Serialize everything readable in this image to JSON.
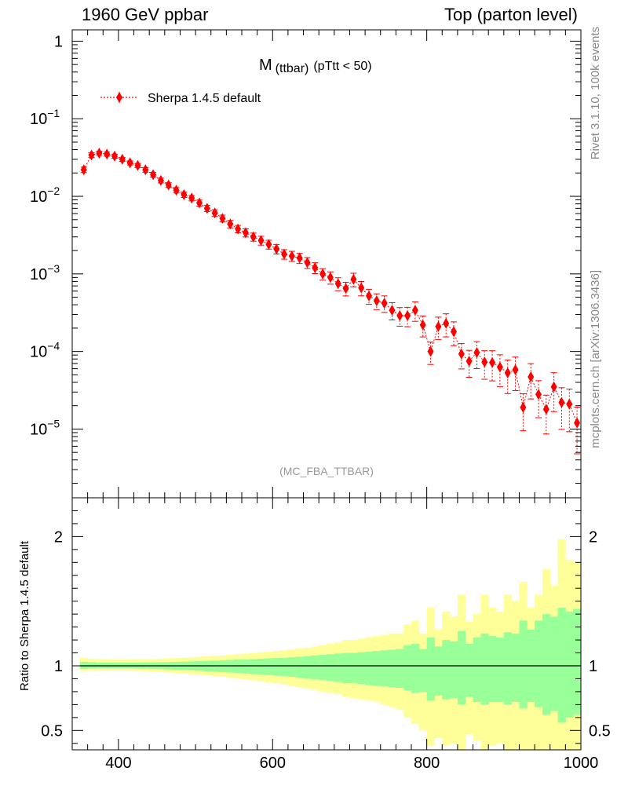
{
  "header": {
    "left": "1960 GeV ppbar",
    "right": "Top (parton level)"
  },
  "side_text": {
    "upper": "Rivet 3.1.10,  100k events",
    "lower": "mcplots.cern.ch [arXiv:1306.3436]"
  },
  "chart_data": [
    {
      "type": "scatter",
      "panel": "main",
      "title_main": "M",
      "title_sub": "(ttbar)",
      "title_tail": "(pTtt < 50)",
      "watermark": "(MC_FBA_TTBAR)",
      "yscale": "log",
      "ylim": [
        1.3e-06,
        1.4
      ],
      "xlim": [
        340,
        1000
      ],
      "y_ticks": [
        {
          "value": 1,
          "mantissa": "1",
          "exp": ""
        },
        {
          "value": 0.1,
          "mantissa": "10",
          "exp": "−1"
        },
        {
          "value": 0.01,
          "mantissa": "10",
          "exp": "−2"
        },
        {
          "value": 0.001,
          "mantissa": "10",
          "exp": "−3"
        },
        {
          "value": 0.0001,
          "mantissa": "10",
          "exp": "−4"
        },
        {
          "value": 1e-05,
          "mantissa": "10",
          "exp": "−5"
        }
      ],
      "legend_position": "top-left",
      "series": [
        {
          "name": "Sherpa 1.4.5 default",
          "color": "#ff0000",
          "marker": "diamond",
          "line": "dotted",
          "x": [
            355,
            365,
            375,
            385,
            395,
            405,
            415,
            425,
            435,
            445,
            455,
            465,
            475,
            485,
            495,
            505,
            515,
            525,
            535,
            545,
            555,
            565,
            575,
            585,
            595,
            605,
            615,
            625,
            635,
            645,
            655,
            665,
            675,
            685,
            695,
            705,
            715,
            725,
            735,
            745,
            755,
            765,
            775,
            785,
            795,
            805,
            815,
            825,
            835,
            845,
            855,
            865,
            875,
            885,
            895,
            905,
            915,
            925,
            935,
            945,
            955,
            965,
            975,
            985,
            995
          ],
          "y": [
            0.022,
            0.034,
            0.036,
            0.035,
            0.033,
            0.03,
            0.027,
            0.025,
            0.022,
            0.019,
            0.016,
            0.014,
            0.012,
            0.0105,
            0.0095,
            0.0082,
            0.007,
            0.0061,
            0.0052,
            0.0044,
            0.0038,
            0.0034,
            0.003,
            0.0027,
            0.0024,
            0.0021,
            0.0018,
            0.0017,
            0.0016,
            0.0014,
            0.0012,
            0.001,
            0.0009,
            0.00075,
            0.00065,
            0.00085,
            0.00066,
            0.00052,
            0.00045,
            0.00042,
            0.00034,
            0.00029,
            0.00029,
            0.00034,
            0.00022,
            0.0001,
            0.00021,
            0.00023,
            0.00018,
            9.3e-05,
            7.5e-05,
            9.7e-05,
            7.3e-05,
            7.2e-05,
            6.3e-05,
            5.3e-05,
            5.8e-05,
            1.9e-05,
            4.7e-05,
            2.8e-05,
            1.8e-05,
            3.5e-05,
            2.2e-05,
            2.1e-05,
            1.2e-05
          ],
          "yerr_rel": [
            0.08,
            0.07,
            0.06,
            0.06,
            0.06,
            0.06,
            0.06,
            0.06,
            0.07,
            0.07,
            0.07,
            0.07,
            0.08,
            0.08,
            0.08,
            0.09,
            0.09,
            0.1,
            0.1,
            0.11,
            0.11,
            0.12,
            0.12,
            0.13,
            0.13,
            0.14,
            0.14,
            0.15,
            0.15,
            0.16,
            0.16,
            0.17,
            0.18,
            0.19,
            0.2,
            0.2,
            0.21,
            0.22,
            0.23,
            0.24,
            0.25,
            0.27,
            0.28,
            0.28,
            0.3,
            0.32,
            0.32,
            0.33,
            0.34,
            0.36,
            0.38,
            0.38,
            0.4,
            0.42,
            0.44,
            0.46,
            0.46,
            0.5,
            0.48,
            0.5,
            0.52,
            0.52,
            0.55,
            0.56,
            0.6
          ]
        }
      ]
    },
    {
      "type": "area",
      "panel": "ratio",
      "ylabel": "Ratio to Sherpa 1.4.5 default",
      "ylim": [
        0.35,
        2.3
      ],
      "xlim": [
        340,
        1000
      ],
      "reference": 1,
      "x_ticks": [
        400,
        600,
        800,
        1000
      ],
      "y_ticks": [
        {
          "value": 0.5,
          "label": "0.5"
        },
        {
          "value": 1,
          "label": "1"
        },
        {
          "value": 2,
          "label": "2"
        }
      ],
      "bin_edges": [
        350,
        360,
        370,
        380,
        390,
        400,
        410,
        420,
        430,
        440,
        450,
        460,
        470,
        480,
        490,
        500,
        510,
        520,
        530,
        540,
        550,
        560,
        570,
        580,
        590,
        600,
        610,
        620,
        630,
        640,
        650,
        660,
        670,
        680,
        690,
        700,
        710,
        720,
        730,
        740,
        750,
        760,
        770,
        780,
        790,
        800,
        810,
        820,
        830,
        840,
        850,
        860,
        870,
        880,
        890,
        900,
        910,
        920,
        930,
        940,
        950,
        960,
        970,
        980,
        990,
        1000
      ],
      "bands": [
        {
          "name": "2-sigma",
          "color": "#ffff99",
          "upper": [
            1.06,
            1.055,
            1.05,
            1.05,
            1.048,
            1.048,
            1.05,
            1.05,
            1.05,
            1.052,
            1.055,
            1.058,
            1.06,
            1.063,
            1.067,
            1.07,
            1.073,
            1.077,
            1.08,
            1.085,
            1.09,
            1.095,
            1.1,
            1.105,
            1.11,
            1.115,
            1.12,
            1.128,
            1.135,
            1.14,
            1.15,
            1.16,
            1.17,
            1.18,
            1.2,
            1.2,
            1.21,
            1.22,
            1.23,
            1.24,
            1.25,
            1.25,
            1.32,
            1.35,
            1.25,
            1.45,
            1.28,
            1.42,
            1.38,
            1.55,
            1.34,
            1.4,
            1.55,
            1.45,
            1.42,
            1.55,
            1.5,
            1.65,
            1.45,
            1.55,
            1.75,
            1.62,
            1.98,
            1.82,
            1.8
          ],
          "lower": [
            0.96,
            0.962,
            0.963,
            0.963,
            0.965,
            0.965,
            0.963,
            0.96,
            0.958,
            0.955,
            0.952,
            0.948,
            0.944,
            0.94,
            0.935,
            0.93,
            0.925,
            0.92,
            0.915,
            0.908,
            0.9,
            0.895,
            0.888,
            0.88,
            0.872,
            0.865,
            0.855,
            0.845,
            0.835,
            0.825,
            0.815,
            0.8,
            0.79,
            0.78,
            0.76,
            0.75,
            0.74,
            0.73,
            0.72,
            0.7,
            0.68,
            0.66,
            0.6,
            0.55,
            0.5,
            0.38,
            0.44,
            0.38,
            0.4,
            0.35,
            0.47,
            0.42,
            0.35,
            0.38,
            0.4,
            0.35,
            0.35,
            0.35,
            0.35,
            0.35,
            0.35,
            0.35,
            0.35,
            0.35,
            0.35
          ]
        },
        {
          "name": "1-sigma",
          "color": "#99ff99",
          "upper": [
            1.03,
            1.028,
            1.025,
            1.025,
            1.024,
            1.024,
            1.025,
            1.025,
            1.026,
            1.027,
            1.028,
            1.029,
            1.03,
            1.032,
            1.034,
            1.036,
            1.038,
            1.04,
            1.042,
            1.045,
            1.048,
            1.05,
            1.052,
            1.055,
            1.058,
            1.06,
            1.062,
            1.066,
            1.07,
            1.075,
            1.08,
            1.085,
            1.09,
            1.095,
            1.1,
            1.1,
            1.105,
            1.11,
            1.115,
            1.12,
            1.125,
            1.13,
            1.16,
            1.17,
            1.13,
            1.22,
            1.15,
            1.2,
            1.19,
            1.27,
            1.17,
            1.22,
            1.25,
            1.23,
            1.22,
            1.26,
            1.25,
            1.35,
            1.28,
            1.35,
            1.4,
            1.38,
            1.45,
            1.42,
            1.44
          ],
          "lower": [
            0.975,
            0.978,
            0.98,
            0.98,
            0.981,
            0.981,
            0.98,
            0.979,
            0.978,
            0.976,
            0.974,
            0.972,
            0.97,
            0.968,
            0.965,
            0.962,
            0.958,
            0.955,
            0.952,
            0.948,
            0.944,
            0.94,
            0.936,
            0.932,
            0.928,
            0.924,
            0.92,
            0.915,
            0.908,
            0.9,
            0.895,
            0.888,
            0.882,
            0.875,
            0.865,
            0.865,
            0.86,
            0.85,
            0.845,
            0.84,
            0.835,
            0.83,
            0.81,
            0.79,
            0.8,
            0.73,
            0.77,
            0.74,
            0.75,
            0.7,
            0.76,
            0.72,
            0.7,
            0.72,
            0.72,
            0.7,
            0.72,
            0.67,
            0.72,
            0.68,
            0.62,
            0.65,
            0.56,
            0.6,
            0.62
          ]
        }
      ]
    }
  ]
}
